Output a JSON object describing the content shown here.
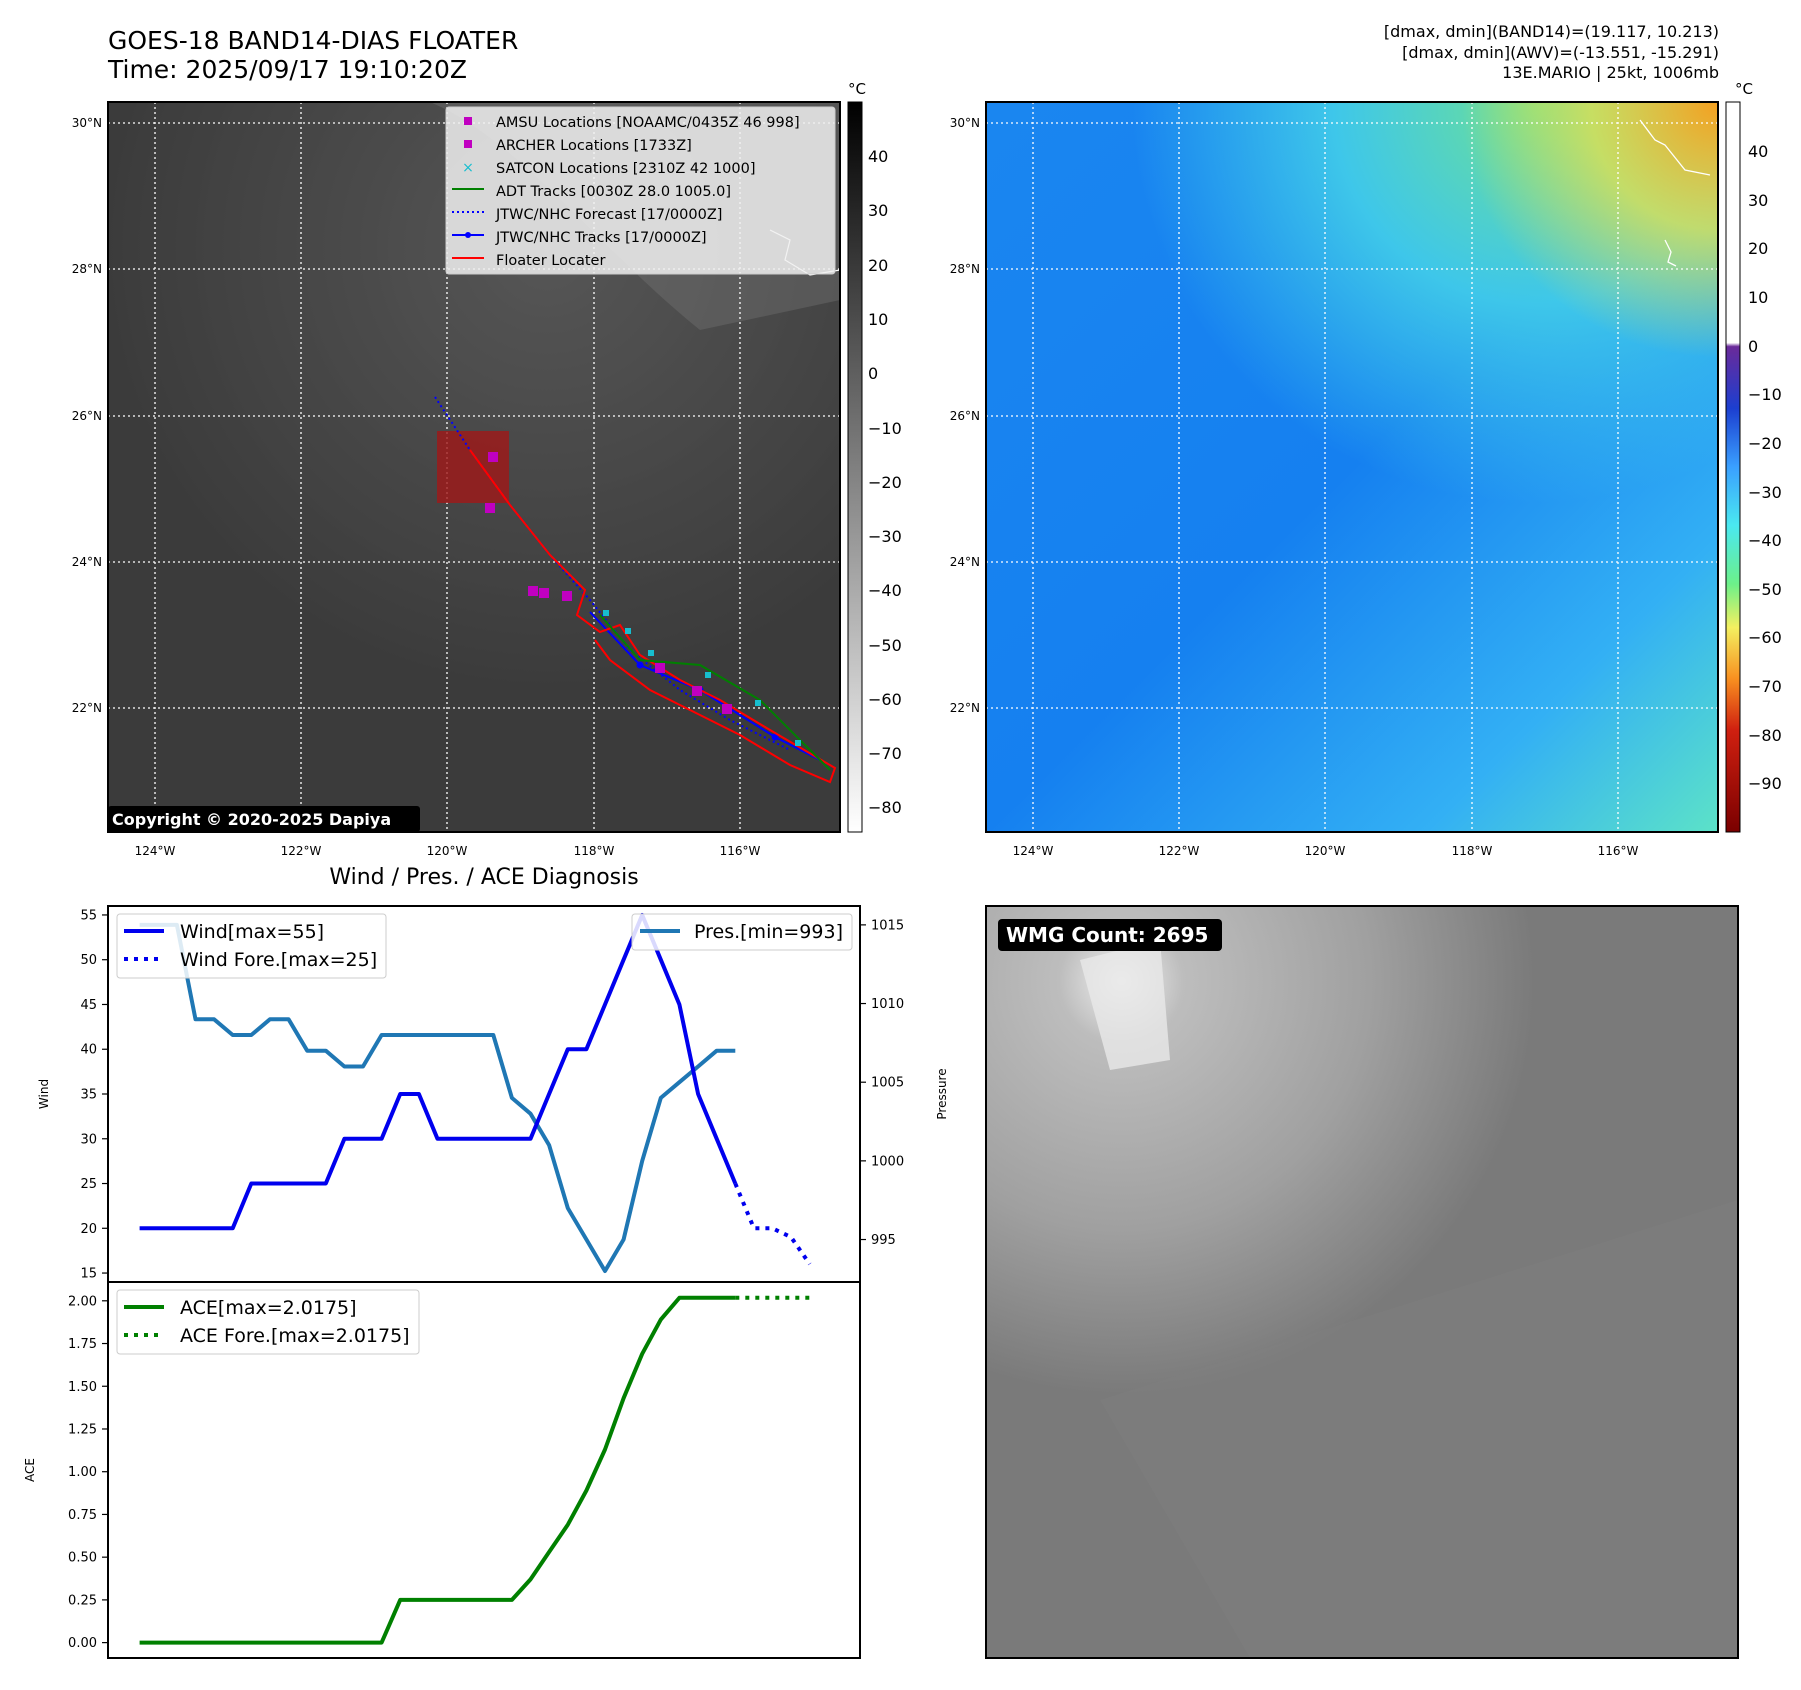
{
  "header": {
    "title": "GOES-18 BAND14-DIAS FLOATER",
    "time": "Time: 2025/09/17 19:10:20Z",
    "info_lines": [
      "[dmax, dmin](BAND14)=(19.117, 10.213)",
      "[dmax, dmin](AWV)=(-13.551, -15.291)",
      "13E.MARIO | 25kt, 1006mb"
    ]
  },
  "ir_map": {
    "lat_labels": [
      "30°N",
      "28°N",
      "26°N",
      "24°N",
      "22°N"
    ],
    "lon_labels": [
      "124°W",
      "122°W",
      "120°W",
      "118°W",
      "116°W"
    ],
    "colorbar_unit": "°C",
    "colorbar_ticks": [
      "40",
      "30",
      "20",
      "10",
      "0",
      "−10",
      "−20",
      "−30",
      "−40",
      "−50",
      "−60",
      "−70",
      "−80"
    ],
    "copyright": "Copyright © 2020-2025 Dapiya",
    "legend": [
      "AMSU Locations [NOAAMC/0435Z 46 998]",
      "ARCHER Locations [1733Z]",
      "SATCON Locations [2310Z 42 1000]",
      "ADT Tracks [0030Z 28.0 1005.0]",
      "JTWC/NHC Forecast [17/0000Z]",
      "JTWC/NHC Tracks [17/0000Z]",
      "Floater Locater"
    ],
    "colors": {
      "amsu": "#c000c0",
      "archer": "#c000c0",
      "satcon": "#17becf",
      "adt": "#008000",
      "forecast": "#0000ff",
      "tracks": "#0000ff",
      "floater": "#ff0000"
    }
  },
  "wv_map": {
    "lat_labels": [
      "30°N",
      "28°N",
      "26°N",
      "24°N",
      "22°N"
    ],
    "lon_labels": [
      "124°W",
      "122°W",
      "120°W",
      "118°W",
      "116°W"
    ],
    "colorbar_unit": "°C",
    "colorbar_ticks": [
      "40",
      "30",
      "20",
      "10",
      "0",
      "−10",
      "−20",
      "−30",
      "−40",
      "−50",
      "−60",
      "−70",
      "−80",
      "−90"
    ]
  },
  "wmg": {
    "label": "WMG Count: 2695"
  },
  "chart_data": [
    {
      "type": "line",
      "title": "Wind / Pres. / ACE Diagnosis",
      "ylabel": "Wind",
      "y2label": "Pressure",
      "ylim": [
        14,
        56
      ],
      "y2lim": [
        992.3,
        1016.2
      ],
      "yticks": [
        "55",
        "50",
        "45",
        "40",
        "35",
        "30",
        "25",
        "20",
        "15"
      ],
      "y2ticks": [
        "1015",
        "1010",
        "1005",
        "1000",
        "995"
      ],
      "series": [
        {
          "name": "Wind[max=55]",
          "color": "#0000ee",
          "x": [
            0,
            1,
            2,
            3,
            4,
            5,
            6,
            7,
            8,
            9,
            10,
            11,
            12,
            13,
            14,
            15,
            16,
            17,
            18,
            19,
            20,
            21,
            22,
            23,
            24,
            25,
            26,
            27,
            28,
            29,
            30,
            31,
            32
          ],
          "values": [
            20,
            20,
            20,
            20,
            20,
            20,
            25,
            25,
            25,
            25,
            25,
            30,
            30,
            30,
            35,
            35,
            30,
            30,
            30,
            30,
            30,
            30,
            35,
            40,
            40,
            45,
            50,
            55,
            50,
            45,
            35,
            30,
            25
          ]
        },
        {
          "name": "Wind Fore.[max=25]",
          "color": "#0000ee",
          "dash": true,
          "x": [
            32,
            33,
            34,
            35,
            36
          ],
          "values": [
            25,
            20,
            20,
            19,
            16
          ]
        },
        {
          "name": "Pres.[min=993]",
          "color": "#1f77b4",
          "x": [
            0,
            1,
            2,
            3,
            4,
            5,
            6,
            7,
            8,
            9,
            10,
            11,
            12,
            13,
            14,
            15,
            16,
            17,
            18,
            19,
            20,
            21,
            22,
            23,
            24,
            25,
            26,
            27,
            28,
            29,
            30,
            31,
            32
          ],
          "values": [
            1015,
            1015,
            1015,
            1009,
            1009,
            1008,
            1008,
            1009,
            1009,
            1007,
            1007,
            1006,
            1006,
            1008,
            1008,
            1008,
            1008,
            1008,
            1008,
            1008,
            1004,
            1003,
            1001,
            997,
            995,
            993,
            995,
            1000,
            1004,
            1005,
            1006,
            1007,
            1007
          ]
        }
      ]
    },
    {
      "type": "line",
      "ylabel": "ACE",
      "ylim": [
        -0.09,
        2.11
      ],
      "yticks": [
        "2.00",
        "1.75",
        "1.50",
        "1.25",
        "1.00",
        "0.75",
        "0.50",
        "0.25",
        "0.00"
      ],
      "series": [
        {
          "name": "ACE[max=2.0175]",
          "color": "#008000",
          "x": [
            0,
            1,
            2,
            3,
            4,
            5,
            6,
            7,
            8,
            9,
            10,
            11,
            12,
            13,
            14,
            15,
            16,
            17,
            18,
            19,
            20,
            21,
            22,
            23,
            24,
            25,
            26,
            27,
            28,
            29,
            30,
            31,
            32
          ],
          "values": [
            0,
            0,
            0,
            0,
            0,
            0,
            0,
            0,
            0,
            0,
            0,
            0,
            0,
            0,
            0.25,
            0.25,
            0.25,
            0.25,
            0.25,
            0.25,
            0.25,
            0.37,
            0.53,
            0.69,
            0.89,
            1.13,
            1.43,
            1.69,
            1.89,
            2.0175,
            2.0175,
            2.0175,
            2.0175
          ]
        },
        {
          "name": "ACE Fore.[max=2.0175]",
          "color": "#008000",
          "dash": true,
          "x": [
            32,
            33,
            34,
            35,
            36
          ],
          "values": [
            2.0175,
            2.0175,
            2.0175,
            2.0175,
            2.0175
          ]
        }
      ]
    }
  ]
}
